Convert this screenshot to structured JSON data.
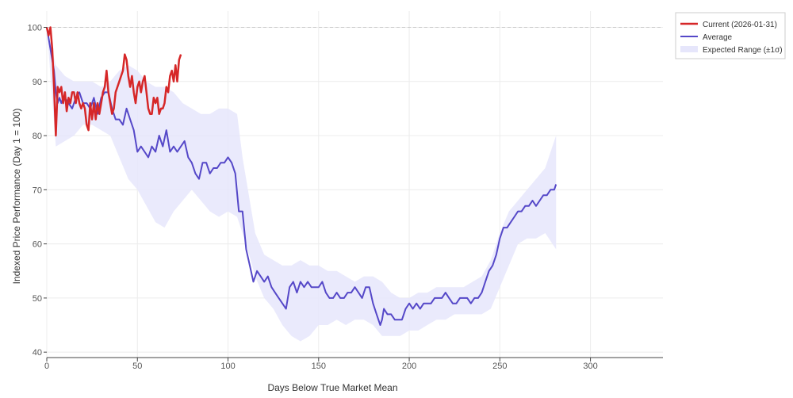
{
  "chart_data": {
    "type": "line",
    "xlabel": "Days Below True Market Mean",
    "ylabel": "Indexed Price Performance (Day 1 = 100)",
    "xlim": [
      0,
      340
    ],
    "ylim": [
      39,
      103
    ],
    "x_ticks": [
      0,
      50,
      100,
      150,
      200,
      250,
      300
    ],
    "y_ticks": [
      40,
      50,
      60,
      70,
      80,
      90,
      100
    ],
    "reference_line": 100,
    "grid": true,
    "legend_position": "top-right, outside plot",
    "colors": {
      "current": "#d62728",
      "average": "#5548c8",
      "band": "#e6e6fb",
      "reference": "#cccccc"
    },
    "series": [
      {
        "name": "Current (2026-01-31)",
        "x": [
          0,
          1,
          2,
          3,
          4,
          5,
          6,
          7,
          8,
          9,
          10,
          11,
          12,
          13,
          14,
          15,
          16,
          17,
          18,
          19,
          20,
          21,
          22,
          23,
          24,
          25,
          26,
          27,
          28,
          29,
          30,
          31,
          32,
          33,
          34,
          35,
          36,
          37,
          38,
          39,
          40,
          41,
          42,
          43,
          44,
          45,
          46,
          47,
          48,
          49,
          50,
          51,
          52,
          53,
          54,
          55,
          56,
          57,
          58,
          59,
          60,
          61,
          62,
          63,
          64,
          65,
          66,
          67,
          68,
          69,
          70,
          71,
          72,
          73,
          74
        ],
        "values": [
          100,
          98.5,
          100,
          96,
          89,
          80,
          89,
          88,
          89,
          86,
          88,
          84.5,
          87,
          86,
          88,
          88,
          86,
          88,
          86,
          85,
          86,
          85,
          82,
          81,
          86,
          83,
          86,
          83,
          86,
          84,
          86,
          88,
          89,
          92,
          88,
          86,
          84,
          85,
          88,
          89,
          90,
          91,
          92,
          95,
          94,
          91,
          89,
          91,
          88,
          86,
          89,
          90,
          88,
          90,
          91,
          88,
          85,
          84,
          84,
          87,
          86,
          87,
          84,
          85,
          85,
          86,
          89,
          88,
          91,
          92,
          90,
          93,
          90,
          94,
          95
        ]
      },
      {
        "name": "Average",
        "x": [
          0,
          2,
          4,
          5,
          6,
          7,
          8,
          9,
          10,
          12,
          14,
          16,
          18,
          20,
          22,
          24,
          26,
          28,
          30,
          32,
          34,
          36,
          38,
          40,
          42,
          44,
          46,
          48,
          50,
          52,
          54,
          56,
          58,
          60,
          62,
          64,
          66,
          68,
          70,
          72,
          74,
          76,
          78,
          80,
          82,
          84,
          86,
          88,
          90,
          92,
          94,
          96,
          98,
          100,
          102,
          104,
          106,
          108,
          110,
          112,
          114,
          116,
          118,
          120,
          122,
          124,
          126,
          128,
          130,
          132,
          134,
          136,
          138,
          140,
          142,
          144,
          146,
          148,
          150,
          152,
          154,
          156,
          158,
          160,
          162,
          164,
          166,
          168,
          170,
          172,
          174,
          176,
          178,
          180,
          182,
          184,
          185,
          186,
          188,
          190,
          192,
          194,
          196,
          198,
          200,
          202,
          204,
          206,
          208,
          210,
          212,
          214,
          216,
          218,
          220,
          222,
          224,
          226,
          228,
          230,
          232,
          234,
          236,
          238,
          240,
          242,
          244,
          246,
          248,
          250,
          252,
          254,
          256,
          258,
          260,
          262,
          264,
          266,
          268,
          270,
          272,
          274,
          276,
          278,
          280,
          281
        ],
        "values": [
          100,
          96,
          92,
          88,
          86,
          87,
          86,
          87,
          87,
          86,
          85,
          87,
          88,
          86,
          86,
          85,
          87,
          84,
          87,
          88,
          88,
          85,
          83,
          83,
          82,
          85,
          83,
          81,
          77,
          78,
          77,
          76,
          78,
          77,
          80,
          78,
          81,
          77,
          78,
          77,
          78,
          79,
          76,
          75,
          73,
          72,
          75,
          75,
          73,
          74,
          74,
          75,
          75,
          76,
          75,
          73,
          66,
          66,
          59,
          56,
          53,
          55,
          54,
          53,
          54,
          52,
          51,
          50,
          49,
          48,
          52,
          53,
          51,
          53,
          52,
          53,
          52,
          52,
          52,
          53,
          51,
          50,
          50,
          51,
          50,
          50,
          51,
          51,
          52,
          51,
          50,
          52,
          52,
          49,
          47,
          45,
          46,
          48,
          47,
          47,
          46,
          46,
          46,
          48,
          49,
          48,
          49,
          48,
          49,
          49,
          49,
          50,
          50,
          50,
          51,
          50,
          49,
          49,
          50,
          50,
          50,
          49,
          50,
          50,
          51,
          53,
          55,
          56,
          58,
          61,
          63,
          63,
          64,
          65,
          66,
          66,
          67,
          67,
          68,
          67,
          68,
          69,
          69,
          70,
          70,
          71
        ]
      }
    ],
    "band": {
      "name": "Expected Range (±1σ)",
      "x": [
        0,
        5,
        10,
        15,
        20,
        25,
        30,
        35,
        40,
        45,
        50,
        55,
        60,
        65,
        70,
        75,
        80,
        85,
        90,
        95,
        100,
        105,
        108,
        110,
        115,
        120,
        125,
        130,
        135,
        140,
        145,
        150,
        155,
        160,
        165,
        170,
        175,
        180,
        185,
        190,
        195,
        200,
        205,
        210,
        215,
        220,
        225,
        230,
        235,
        240,
        245,
        250,
        255,
        260,
        265,
        270,
        275,
        281
      ],
      "upper": [
        100,
        93,
        91,
        90,
        90,
        90,
        89,
        90,
        92,
        93,
        92,
        90,
        89,
        89,
        88,
        86,
        85,
        84,
        84,
        85,
        85,
        84,
        76,
        72,
        62,
        58,
        57,
        56,
        56,
        57,
        56,
        56,
        55,
        55,
        54,
        53,
        54,
        54,
        53,
        51,
        50,
        50,
        51,
        51,
        52,
        52,
        52,
        52,
        53,
        54,
        57,
        62,
        66,
        68,
        70,
        72,
        74,
        80
      ],
      "lower": [
        100,
        78,
        79,
        80,
        82,
        82,
        81,
        80,
        76,
        72,
        70,
        67,
        64,
        63,
        66,
        68,
        70,
        68,
        66,
        65,
        66,
        65,
        62,
        60,
        54,
        50,
        48,
        45,
        43,
        42,
        43,
        45,
        45,
        46,
        45,
        46,
        46,
        45,
        43,
        43,
        43,
        44,
        44,
        45,
        46,
        46,
        47,
        47,
        47,
        47,
        48,
        52,
        56,
        60,
        61,
        61,
        62,
        59
      ]
    }
  }
}
